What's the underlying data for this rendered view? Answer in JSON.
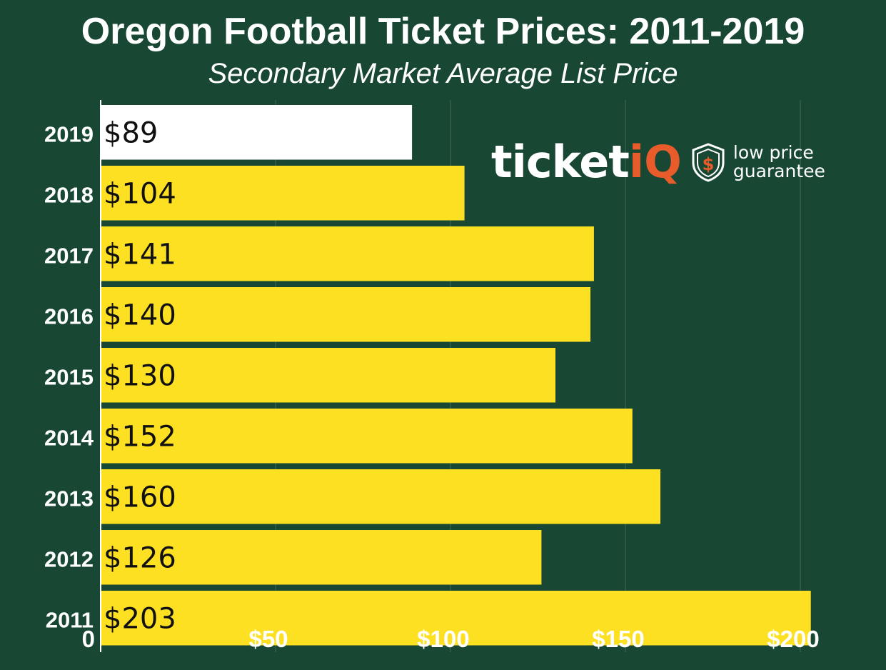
{
  "title": "Oregon Football Ticket Prices: 2011-2019",
  "subtitle": "Secondary Market Average List Price",
  "logo": {
    "wordmark": "ticket",
    "wordmark_accent": "iQ",
    "tagline_line1": "low price",
    "tagline_line2": "guarantee",
    "badge_icon": "shield-dollar-icon"
  },
  "colors": {
    "background": "#184734",
    "bar": "#fde022",
    "highlight_bar": "#ffffff",
    "brand_accent": "#e85b2a"
  },
  "chart_data": {
    "type": "bar",
    "orientation": "horizontal",
    "title": "Oregon Football Ticket Prices: 2011-2019",
    "subtitle": "Secondary Market Average List Price",
    "categories": [
      "2019",
      "2018",
      "2017",
      "2016",
      "2015",
      "2014",
      "2013",
      "2012",
      "2011"
    ],
    "values": [
      89,
      104,
      141,
      140,
      130,
      152,
      160,
      126,
      203
    ],
    "data_labels": [
      "$89",
      "$104",
      "$141",
      "$140",
      "$130",
      "$152",
      "$160",
      "$126",
      "$203"
    ],
    "highlight_category": "2019",
    "xlim": [
      0,
      205
    ],
    "xticks": [
      0,
      50,
      100,
      150,
      200
    ],
    "xtick_labels": [
      "0",
      "$50",
      "$100",
      "$150",
      "$200"
    ],
    "grid": "vertical",
    "legend": "none"
  }
}
